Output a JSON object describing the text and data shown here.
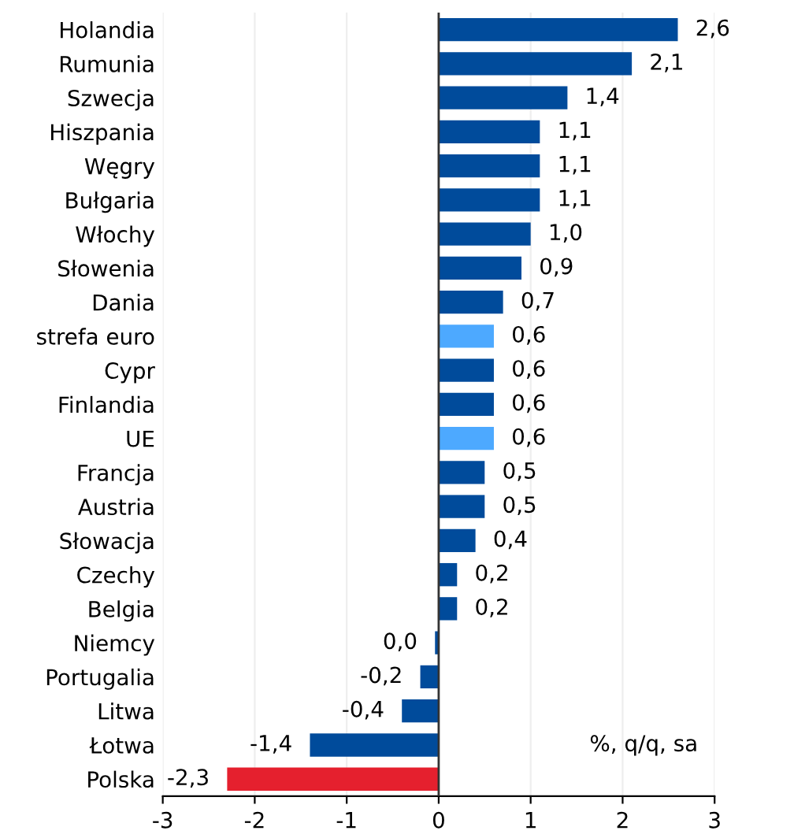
{
  "chart_data": {
    "type": "bar",
    "orientation": "horizontal",
    "categories": [
      "Holandia",
      "Rumunia",
      "Szwecja",
      "Hiszpania",
      "Węgry",
      "Bułgaria",
      "Włochy",
      "Słowenia",
      "Dania",
      "strefa euro",
      "Cypr",
      "Finlandia",
      "UE",
      "Francja",
      "Austria",
      "Słowacja",
      "Czechy",
      "Belgia",
      "Niemcy",
      "Portugalia",
      "Litwa",
      "Łotwa",
      "Polska"
    ],
    "values": [
      2.6,
      2.1,
      1.4,
      1.1,
      1.1,
      1.1,
      1.0,
      0.9,
      0.7,
      0.6,
      0.6,
      0.6,
      0.6,
      0.5,
      0.5,
      0.4,
      0.2,
      0.2,
      -0.04,
      -0.2,
      -0.4,
      -1.4,
      -2.3
    ],
    "colors": [
      "#004b9b",
      "#004b9b",
      "#004b9b",
      "#004b9b",
      "#004b9b",
      "#004b9b",
      "#004b9b",
      "#004b9b",
      "#004b9b",
      "#4da9ff",
      "#004b9b",
      "#004b9b",
      "#4da9ff",
      "#004b9b",
      "#004b9b",
      "#004b9b",
      "#004b9b",
      "#004b9b",
      "#004b9b",
      "#004b9b",
      "#004b9b",
      "#004b9b",
      "#e5202e"
    ],
    "value_labels": [
      "2,6",
      "2,1",
      "1,4",
      "1,1",
      "1,1",
      "1,1",
      "1,0",
      "0,9",
      "0,7",
      "0,6",
      "0,6",
      "0,6",
      "0,6",
      "0,5",
      "0,5",
      "0,4",
      "0,2",
      "0,2",
      "0,0",
      "-0,2",
      "-0,4",
      "-1,4",
      "-2,3"
    ],
    "xlim": [
      -3,
      3
    ],
    "xticks": [
      {
        "value": -3,
        "label": "-3"
      },
      {
        "value": -2,
        "label": "-2"
      },
      {
        "value": -1,
        "label": "-1"
      },
      0,
      1,
      2,
      3
    ],
    "grid": "x",
    "annotations": [
      "%, q/q, sa"
    ]
  }
}
